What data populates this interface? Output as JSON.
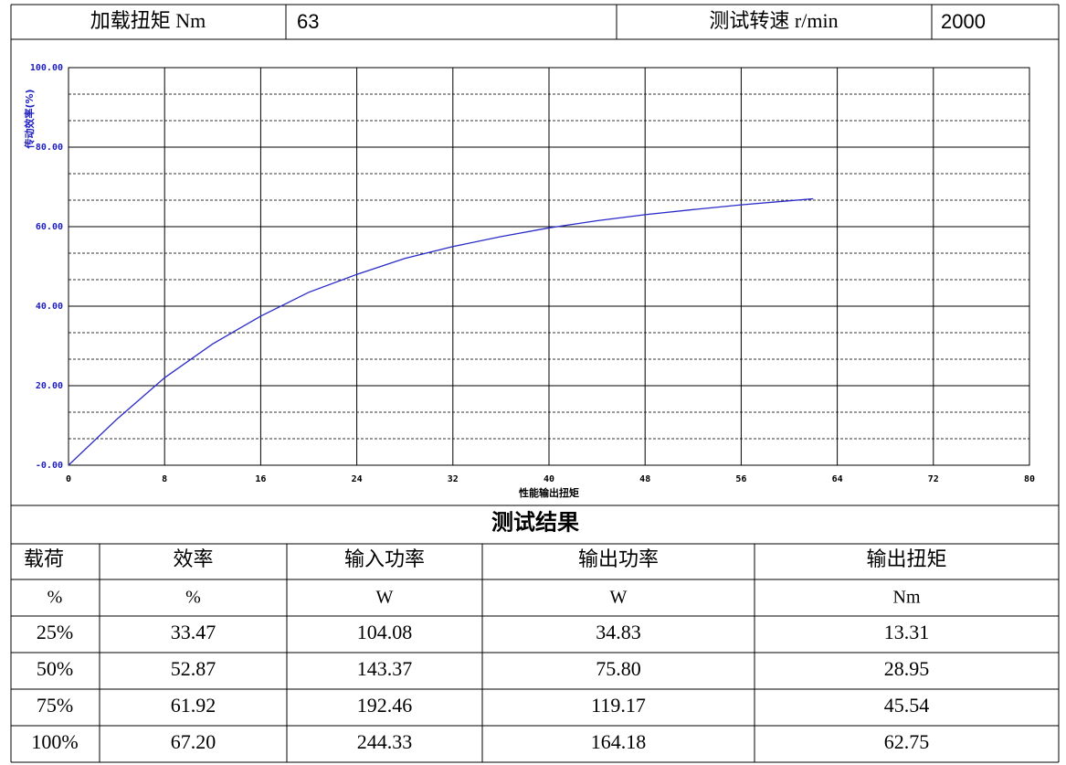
{
  "header": {
    "cells": [
      "加载扭矩 Nm",
      "63",
      "测试转速 r/min",
      "2000"
    ]
  },
  "chart_data": {
    "type": "line",
    "ylabel": "传动效率(%)",
    "xlabel": "性能输出扭矩",
    "x": [
      0,
      4,
      8,
      12,
      16,
      20,
      24,
      28,
      32,
      36,
      40,
      44,
      48,
      52,
      56,
      60,
      62
    ],
    "series": [
      {
        "name": "传动效率",
        "color": "#2a2ac8",
        "values": [
          0,
          11.5,
          22,
          30.5,
          37.5,
          43.5,
          48,
          52,
          55,
          57.5,
          59.7,
          61.5,
          63,
          64.3,
          65.5,
          66.5,
          67
        ]
      }
    ],
    "xlim": [
      0,
      80
    ],
    "xticks": [
      0,
      8,
      16,
      24,
      32,
      40,
      48,
      56,
      64,
      72,
      80
    ],
    "ylim": [
      0,
      100
    ],
    "yticks": [
      {
        "value": 0,
        "label": "-0.00"
      },
      {
        "value": 20,
        "label": "20.00"
      },
      {
        "value": 40,
        "label": "40.00"
      },
      {
        "value": 60,
        "label": "60.00"
      },
      {
        "value": 80,
        "label": "80.00"
      },
      {
        "value": 100,
        "label": "100.00"
      }
    ],
    "grid": true
  },
  "results": {
    "title": "测试结果",
    "columns": [
      "载荷",
      "效率",
      "输入功率",
      "输出功率",
      "输出扭矩"
    ],
    "units": [
      "%",
      "%",
      "W",
      "W",
      "Nm"
    ],
    "rows": [
      [
        "25%",
        "33.47",
        "104.08",
        "34.83",
        "13.31"
      ],
      [
        "50%",
        "52.87",
        "143.37",
        "75.80",
        "28.95"
      ],
      [
        "75%",
        "61.92",
        "192.46",
        "119.17",
        "45.54"
      ],
      [
        "100%",
        "67.20",
        "244.33",
        "164.18",
        "62.75"
      ]
    ]
  }
}
